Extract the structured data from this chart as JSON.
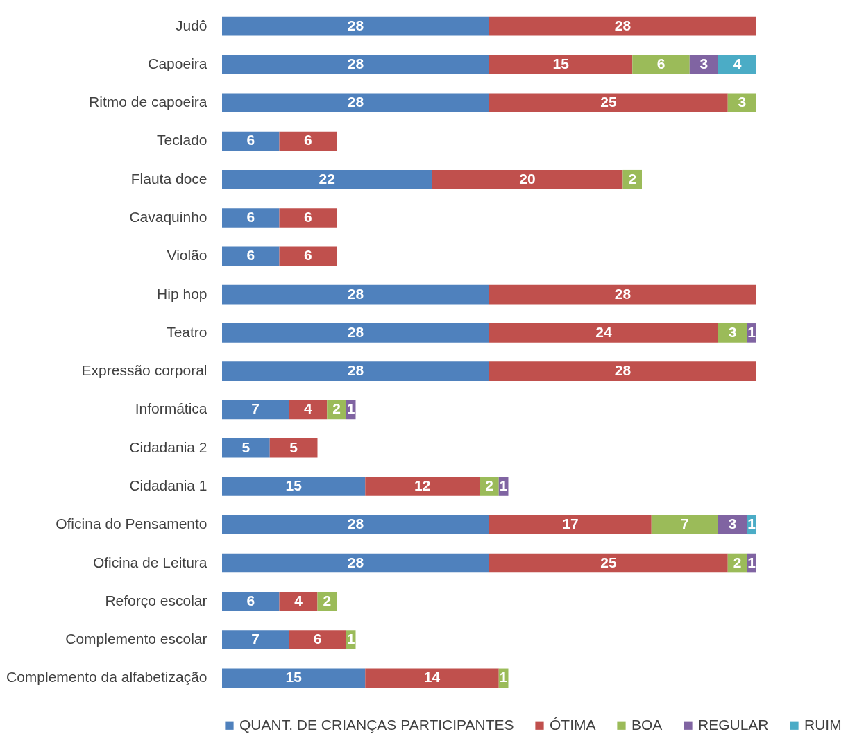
{
  "chart_data": {
    "type": "bar",
    "orientation": "horizontal",
    "stacked": true,
    "data_labels": true,
    "legend": "bottom",
    "tick_labels": "y",
    "categories": [
      "Judô",
      "Capoeira",
      "Ritmo de capoeira",
      "Teclado",
      "Flauta doce",
      "Cavaquinho",
      "Violão",
      "Hip hop",
      "Teatro",
      "Expressão corporal",
      "Informática",
      "Cidadania 2",
      "Cidadania 1",
      "Oficina do Pensamento",
      "Oficina de Leitura",
      "Reforço escolar",
      "Complemento escolar",
      "Complemento da alfabetização"
    ],
    "series": [
      {
        "name": "QUANT. DE CRIANÇAS PARTICIPANTES",
        "color": "#4f81bd",
        "values": [
          28,
          28,
          28,
          6,
          22,
          6,
          6,
          28,
          28,
          28,
          7,
          5,
          15,
          28,
          28,
          6,
          7,
          15
        ]
      },
      {
        "name": "ÓTIMA",
        "color": "#c0504d",
        "values": [
          28,
          15,
          25,
          6,
          20,
          6,
          6,
          28,
          24,
          28,
          4,
          5,
          12,
          17,
          25,
          4,
          6,
          14
        ]
      },
      {
        "name": "BOA",
        "color": "#9bbb59",
        "values": [
          null,
          6,
          3,
          null,
          2,
          null,
          null,
          null,
          3,
          null,
          2,
          null,
          2,
          7,
          2,
          2,
          1,
          1
        ]
      },
      {
        "name": "REGULAR",
        "color": "#8064a2",
        "values": [
          null,
          3,
          null,
          null,
          null,
          null,
          null,
          null,
          1,
          null,
          1,
          null,
          1,
          3,
          1,
          null,
          null,
          null
        ]
      },
      {
        "name": "RUIM",
        "color": "#4bacc6",
        "values": [
          null,
          4,
          null,
          null,
          null,
          null,
          null,
          null,
          null,
          null,
          null,
          null,
          null,
          1,
          null,
          null,
          null,
          null
        ]
      }
    ]
  }
}
